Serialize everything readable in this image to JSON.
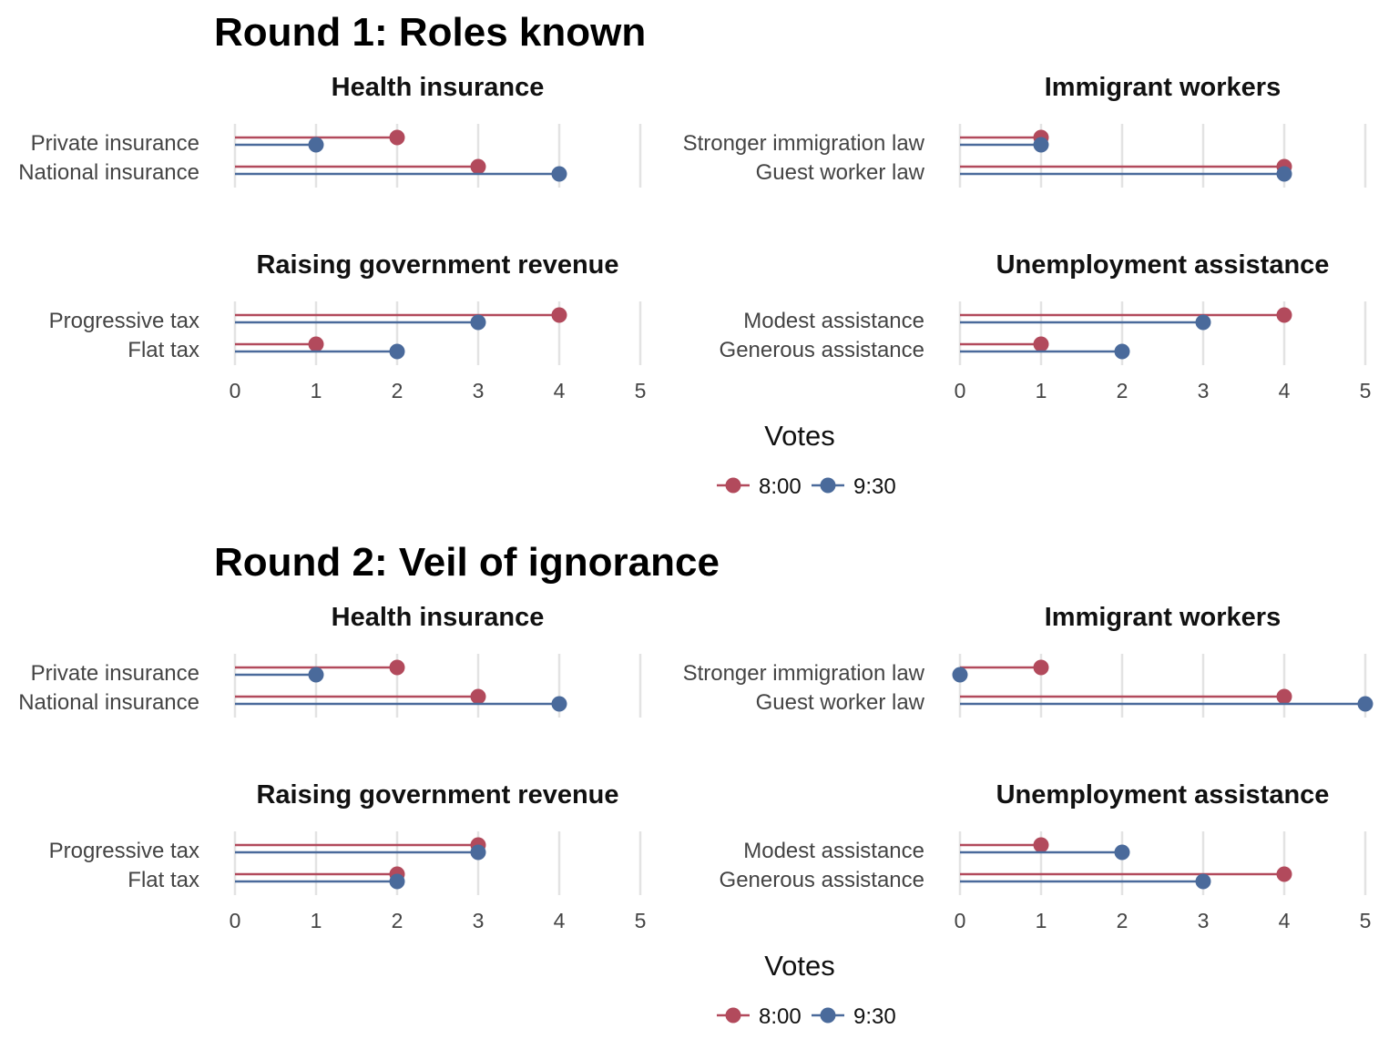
{
  "colors": {
    "8:00": "#b24a5c",
    "9:30": "#4a6a9b",
    "grid": "#e3e3e3"
  },
  "chart_data": [
    {
      "type": "dot",
      "title": "Round 1: Roles known",
      "xlabel": "Votes",
      "xlim": [
        0,
        5
      ],
      "xticks": [
        "0",
        "1",
        "2",
        "3",
        "4",
        "5"
      ],
      "legend": {
        "position": "bottom",
        "entries": [
          "8:00",
          "9:30"
        ]
      },
      "panels": [
        {
          "title": "Health insurance",
          "categories": [
            "Private insurance",
            "National insurance"
          ],
          "series": [
            {
              "name": "8:00",
              "values": [
                2,
                3
              ]
            },
            {
              "name": "9:30",
              "values": [
                1,
                4
              ]
            }
          ]
        },
        {
          "title": "Immigrant workers",
          "categories": [
            "Stronger immigration law",
            "Guest worker law"
          ],
          "series": [
            {
              "name": "8:00",
              "values": [
                1,
                4
              ]
            },
            {
              "name": "9:30",
              "values": [
                1,
                4
              ]
            }
          ]
        },
        {
          "title": "Raising government revenue",
          "categories": [
            "Progressive tax",
            "Flat tax"
          ],
          "series": [
            {
              "name": "8:00",
              "values": [
                4,
                1
              ]
            },
            {
              "name": "9:30",
              "values": [
                3,
                2
              ]
            }
          ]
        },
        {
          "title": "Unemployment assistance",
          "categories": [
            "Modest assistance",
            "Generous assistance"
          ],
          "series": [
            {
              "name": "8:00",
              "values": [
                4,
                1
              ]
            },
            {
              "name": "9:30",
              "values": [
                3,
                2
              ]
            }
          ]
        }
      ]
    },
    {
      "type": "dot",
      "title": "Round 2: Veil of ignorance",
      "xlabel": "Votes",
      "xlim": [
        0,
        5
      ],
      "xticks": [
        "0",
        "1",
        "2",
        "3",
        "4",
        "5"
      ],
      "legend": {
        "position": "bottom",
        "entries": [
          "8:00",
          "9:30"
        ]
      },
      "panels": [
        {
          "title": "Health insurance",
          "categories": [
            "Private insurance",
            "National insurance"
          ],
          "series": [
            {
              "name": "8:00",
              "values": [
                2,
                3
              ]
            },
            {
              "name": "9:30",
              "values": [
                1,
                4
              ]
            }
          ]
        },
        {
          "title": "Immigrant workers",
          "categories": [
            "Stronger immigration law",
            "Guest worker law"
          ],
          "series": [
            {
              "name": "8:00",
              "values": [
                1,
                4
              ]
            },
            {
              "name": "9:30",
              "values": [
                0,
                5
              ]
            }
          ]
        },
        {
          "title": "Raising government revenue",
          "categories": [
            "Progressive tax",
            "Flat tax"
          ],
          "series": [
            {
              "name": "8:00",
              "values": [
                3,
                2
              ]
            },
            {
              "name": "9:30",
              "values": [
                3,
                2
              ]
            }
          ]
        },
        {
          "title": "Unemployment assistance",
          "categories": [
            "Modest assistance",
            "Generous assistance"
          ],
          "series": [
            {
              "name": "8:00",
              "values": [
                1,
                4
              ]
            },
            {
              "name": "9:30",
              "values": [
                2,
                3
              ]
            }
          ]
        }
      ]
    }
  ]
}
